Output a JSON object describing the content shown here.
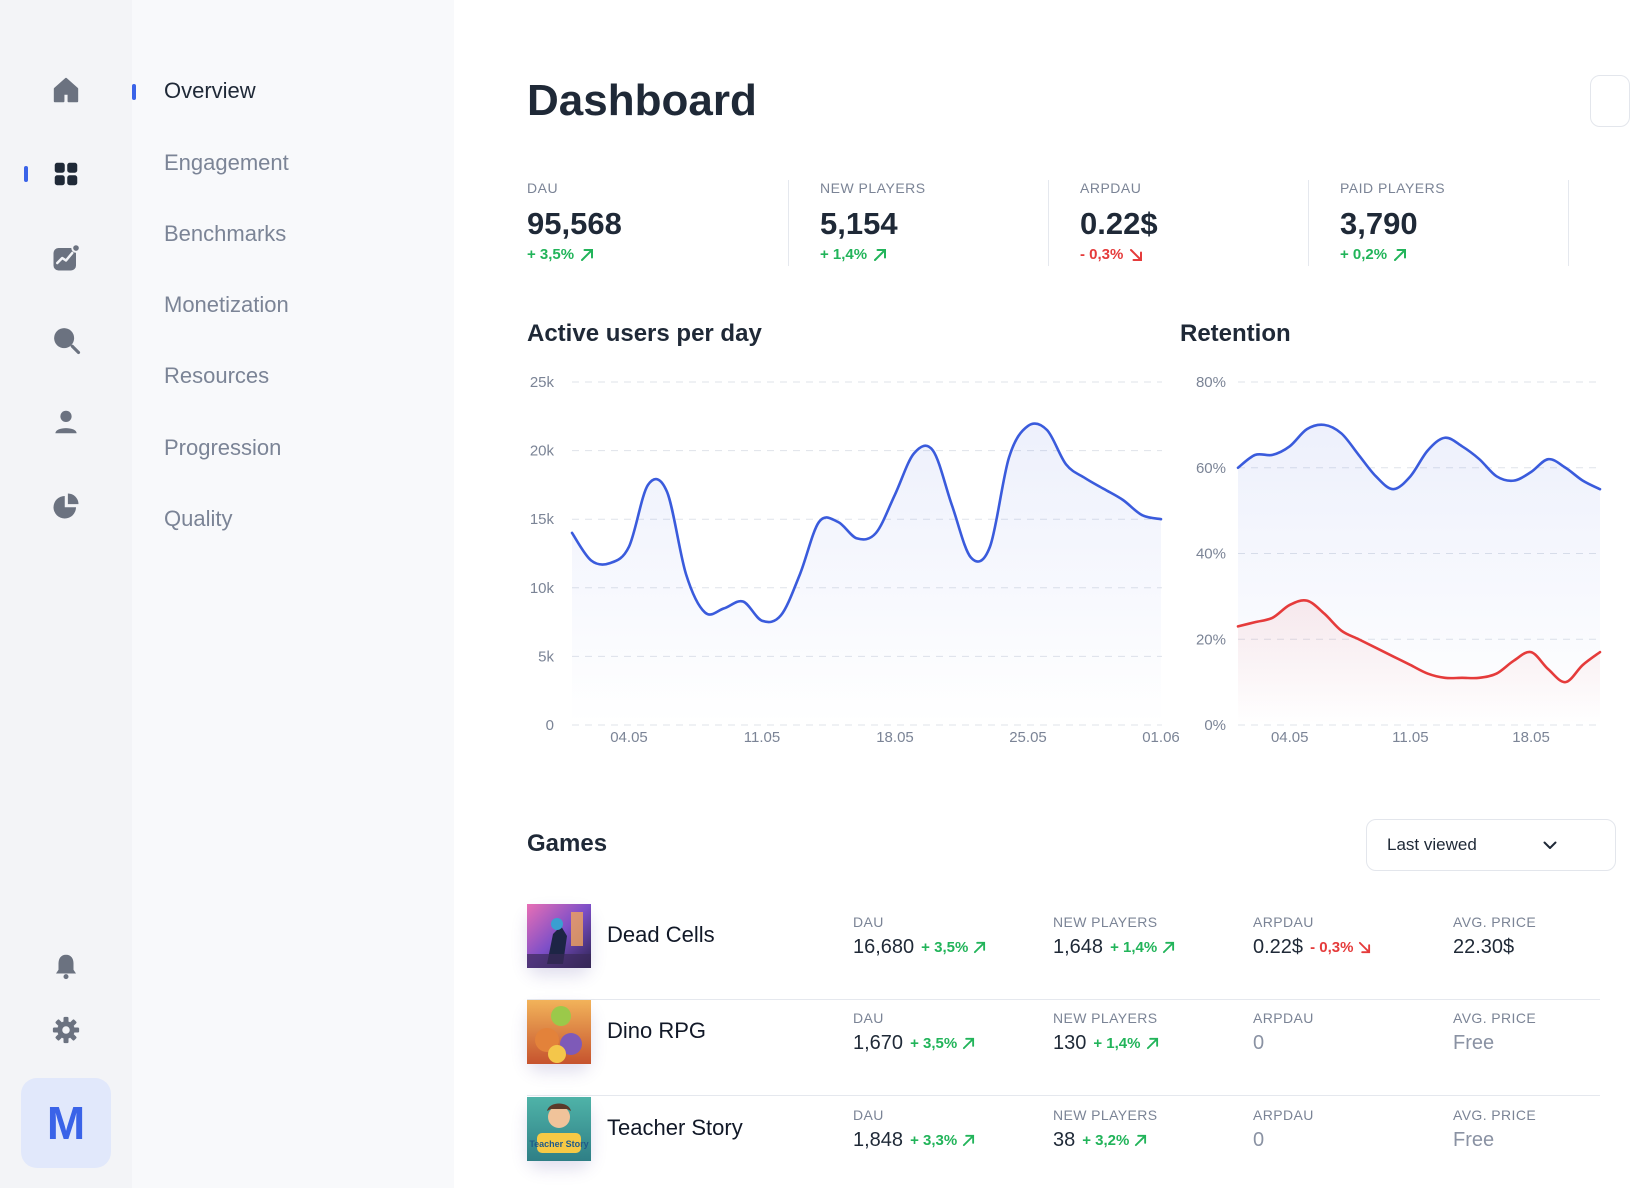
{
  "nav": {
    "rail": [
      {
        "name": "home",
        "icon": "home-icon"
      },
      {
        "name": "dashboard",
        "icon": "grid-icon",
        "active": true
      },
      {
        "name": "analytics",
        "icon": "chart-icon"
      },
      {
        "name": "search",
        "icon": "search-icon"
      },
      {
        "name": "users",
        "icon": "user-icon"
      },
      {
        "name": "reports",
        "icon": "pie-chart-icon"
      }
    ],
    "bottom": [
      {
        "name": "notifications",
        "icon": "bell-icon"
      },
      {
        "name": "settings",
        "icon": "gear-icon"
      }
    ],
    "avatar_letter": "M"
  },
  "subnav": {
    "items": [
      "Overview",
      "Engagement",
      "Benchmarks",
      "Monetization",
      "Resources",
      "Progression",
      "Quality"
    ],
    "active_index": 0
  },
  "page": {
    "title": "Dashboard"
  },
  "kpis": [
    {
      "label": "DAU",
      "value": "95,568",
      "delta": "+ 3,5%",
      "trend": "up"
    },
    {
      "label": "NEW PLAYERS",
      "value": "5,154",
      "delta": "+ 1,4%",
      "trend": "up"
    },
    {
      "label": "ARPDAU",
      "value": "0.22$",
      "delta": "- 0,3%",
      "trend": "down"
    },
    {
      "label": "PAID PLAYERS",
      "value": "3,790",
      "delta": "+ 0,2%",
      "trend": "up"
    }
  ],
  "charts": {
    "active_users": {
      "title": "Active users per day",
      "chart_data": {
        "type": "area",
        "x": [
          "01.05",
          "02.05",
          "03.05",
          "04.05",
          "05.05",
          "06.05",
          "07.05",
          "08.05",
          "09.05",
          "10.05",
          "11.05",
          "12.05",
          "13.05",
          "14.05",
          "15.05",
          "16.05",
          "17.05",
          "18.05",
          "19.05",
          "20.05",
          "21.05",
          "22.05",
          "23.05",
          "24.05",
          "25.05",
          "26.05",
          "27.05",
          "28.05",
          "29.05",
          "30.05",
          "31.05",
          "01.06"
        ],
        "y": [
          14000,
          12000,
          11800,
          13000,
          17500,
          17000,
          11000,
          8200,
          8500,
          9000,
          7600,
          8000,
          11000,
          14800,
          14800,
          13600,
          14000,
          16800,
          19800,
          20000,
          16000,
          12200,
          13000,
          19500,
          21800,
          21500,
          19000,
          18000,
          17200,
          16400,
          15300,
          15000
        ],
        "ticks": [
          "04.05",
          "11.05",
          "18.05",
          "25.05",
          "01.06"
        ],
        "ylabels": [
          "0",
          "5k",
          "10k",
          "15k",
          "20k",
          "25k"
        ],
        "ylim": [
          0,
          25000
        ],
        "grid": true,
        "color": "#3a5bdc"
      }
    },
    "retention": {
      "title": "Retention",
      "chart_data": {
        "type": "line",
        "x": [
          "01.05",
          "02.05",
          "03.05",
          "04.05",
          "05.05",
          "06.05",
          "07.05",
          "08.05",
          "09.05",
          "10.05",
          "11.05",
          "12.05",
          "13.05",
          "14.05",
          "15.05",
          "16.05",
          "17.05",
          "18.05",
          "19.05",
          "20.05",
          "21.05",
          "22.05"
        ],
        "series": [
          {
            "values": [
              60,
              63,
              63,
              65,
              69,
              70,
              68,
              63,
              58,
              55,
              58,
              64,
              67,
              65,
              62,
              58,
              57,
              59,
              62,
              60,
              57,
              55
            ],
            "color": "#3a5bdc"
          },
          {
            "values": [
              23,
              24,
              25,
              28,
              29,
              26,
              22,
              20,
              18,
              16,
              14,
              12,
              11,
              11,
              11,
              12,
              15,
              17,
              13,
              10,
              14,
              17
            ],
            "color": "#e53b3b"
          }
        ],
        "ticks": [
          "04.05",
          "11.05",
          "18.05"
        ],
        "ylabels": [
          "0%",
          "20%",
          "40%",
          "60%",
          "80%"
        ],
        "ylim": [
          0,
          80
        ],
        "grid": true
      }
    }
  },
  "games": {
    "title": "Games",
    "filter": "Last viewed",
    "rows": [
      {
        "name": "Dead Cells",
        "icon": "dead-cells-game-icon",
        "dau": {
          "label": "DAU",
          "value": "16,680",
          "delta": "+ 3,5%",
          "trend": "up"
        },
        "new_players": {
          "label": "NEW PLAYERS",
          "value": "1,648",
          "delta": "+ 1,4%",
          "trend": "up"
        },
        "arpdau": {
          "label": "ARPDAU",
          "value": "0.22$",
          "delta": "- 0,3%",
          "trend": "down"
        },
        "avg_price": {
          "label": "AVG. PRICE",
          "value": "22.30$"
        }
      },
      {
        "name": "Dino RPG",
        "icon": "dino-rpg-game-icon",
        "dau": {
          "label": "DAU",
          "value": "1,670",
          "delta": "+ 3,5%",
          "trend": "up"
        },
        "new_players": {
          "label": "NEW PLAYERS",
          "value": "130",
          "delta": "+ 1,4%",
          "trend": "up"
        },
        "arpdau": {
          "label": "ARPDAU",
          "value": "0",
          "delta": "",
          "trend": ""
        },
        "avg_price": {
          "label": "AVG. PRICE",
          "value": "Free"
        }
      },
      {
        "name": "Teacher Story",
        "icon": "teacher-story-game-icon",
        "icon_text": "Teacher Story",
        "dau": {
          "label": "DAU",
          "value": "1,848",
          "delta": "+ 3,3%",
          "trend": "up"
        },
        "new_players": {
          "label": "NEW PLAYERS",
          "value": "38",
          "delta": "+ 3,2%",
          "trend": "up"
        },
        "arpdau": {
          "label": "ARPDAU",
          "value": "0",
          "delta": "",
          "trend": ""
        },
        "avg_price": {
          "label": "AVG. PRICE",
          "value": "Free"
        }
      }
    ]
  }
}
